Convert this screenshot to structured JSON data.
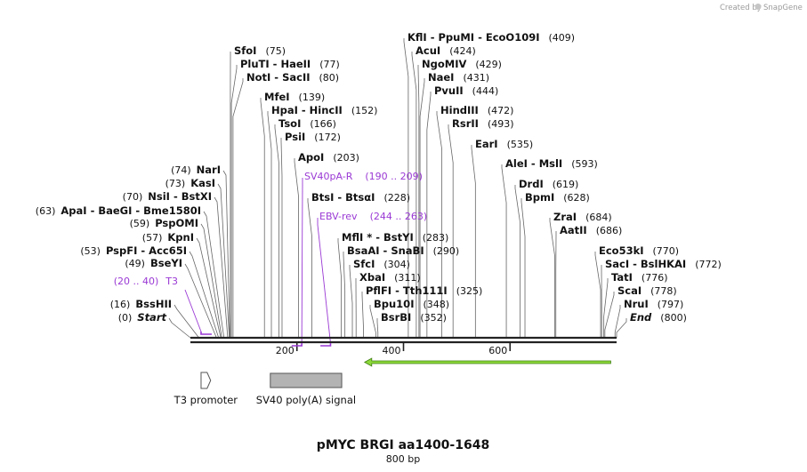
{
  "credit": {
    "text": "Created by",
    "brand": "SnapGene"
  },
  "title": "pMYC BRGI aa1400-1648",
  "subtitle": "800 bp",
  "sequence_length": 800,
  "ruler_ticks": [
    "200",
    "400",
    "600"
  ],
  "sites": [
    {
      "label": "Start",
      "pos": "(0)",
      "bp": 0,
      "side": "left",
      "italic": true
    },
    {
      "label": "BssHII",
      "pos": "(16)",
      "bp": 16,
      "side": "left"
    },
    {
      "label": "BseYI",
      "pos": "(49)",
      "bp": 49,
      "side": "left"
    },
    {
      "label": "PspFI  -  Acc65I",
      "pos": "(53)",
      "bp": 53,
      "side": "left"
    },
    {
      "label": "KpnI",
      "pos": "(57)",
      "bp": 57,
      "side": "left"
    },
    {
      "label": "PspOMI",
      "pos": "(59)",
      "bp": 59,
      "side": "left"
    },
    {
      "label": "ApaI  -  BaeGI  -  Bme1580I",
      "pos": "(63)",
      "bp": 63,
      "side": "left"
    },
    {
      "label": "NsiI  -  BstXI",
      "pos": "(70)",
      "bp": 70,
      "side": "left"
    },
    {
      "label": "KasI",
      "pos": "(73)",
      "bp": 73,
      "side": "left"
    },
    {
      "label": "NarI",
      "pos": "(74)",
      "bp": 74,
      "side": "left"
    },
    {
      "label": "SfoI",
      "pos": "(75)",
      "bp": 75,
      "side": "right"
    },
    {
      "label": "PluTI  -  HaeII",
      "pos": "(77)",
      "bp": 77,
      "side": "right"
    },
    {
      "label": "NotI  -  SacII",
      "pos": "(80)",
      "bp": 80,
      "side": "right"
    },
    {
      "label": "MfeI",
      "pos": "(139)",
      "bp": 139,
      "side": "right"
    },
    {
      "label": "HpaI  -  HincII",
      "pos": "(152)",
      "bp": 152,
      "side": "right"
    },
    {
      "label": "TsoI",
      "pos": "(166)",
      "bp": 166,
      "side": "right"
    },
    {
      "label": "PsiI",
      "pos": "(172)",
      "bp": 172,
      "side": "right"
    },
    {
      "label": "ApoI",
      "pos": "(203)",
      "bp": 203,
      "side": "right"
    },
    {
      "label": "BtsI  -  BtsαI",
      "pos": "(228)",
      "bp": 228,
      "side": "right"
    },
    {
      "label": "MflI *  -  BstYI",
      "pos": "(283)",
      "bp": 283,
      "side": "right"
    },
    {
      "label": "BsaAI  -  SnaBI",
      "pos": "(290)",
      "bp": 290,
      "side": "right"
    },
    {
      "label": "SfcI",
      "pos": "(304)",
      "bp": 304,
      "side": "right"
    },
    {
      "label": "XbaI",
      "pos": "(311)",
      "bp": 311,
      "side": "right"
    },
    {
      "label": "PflFI  -  Tth111I",
      "pos": "(325)",
      "bp": 325,
      "side": "right"
    },
    {
      "label": "Bpu10I",
      "pos": "(348)",
      "bp": 348,
      "side": "right"
    },
    {
      "label": "BsrBI",
      "pos": "(352)",
      "bp": 352,
      "side": "right"
    },
    {
      "label": "KflI  -  PpuMI  -  EcoO109I",
      "pos": "(409)",
      "bp": 409,
      "side": "right"
    },
    {
      "label": "AcuI",
      "pos": "(424)",
      "bp": 424,
      "side": "right"
    },
    {
      "label": "NgoMIV",
      "pos": "(429)",
      "bp": 429,
      "side": "right"
    },
    {
      "label": "NaeI",
      "pos": "(431)",
      "bp": 431,
      "side": "right"
    },
    {
      "label": "PvuII",
      "pos": "(444)",
      "bp": 444,
      "side": "right"
    },
    {
      "label": "HindIII",
      "pos": "(472)",
      "bp": 472,
      "side": "right"
    },
    {
      "label": "RsrII",
      "pos": "(493)",
      "bp": 493,
      "side": "right"
    },
    {
      "label": "EarI",
      "pos": "(535)",
      "bp": 535,
      "side": "right"
    },
    {
      "label": "AleI  -  MslI",
      "pos": "(593)",
      "bp": 593,
      "side": "right"
    },
    {
      "label": "DrdI",
      "pos": "(619)",
      "bp": 619,
      "side": "right"
    },
    {
      "label": "BpmI",
      "pos": "(628)",
      "bp": 628,
      "side": "right"
    },
    {
      "label": "ZraI",
      "pos": "(684)",
      "bp": 684,
      "side": "right"
    },
    {
      "label": "AatII",
      "pos": "(686)",
      "bp": 686,
      "side": "right"
    },
    {
      "label": "Eco53kI",
      "pos": "(770)",
      "bp": 770,
      "side": "right"
    },
    {
      "label": "SacI  -  BslHKAI",
      "pos": "(772)",
      "bp": 772,
      "side": "right"
    },
    {
      "label": "TatI",
      "pos": "(776)",
      "bp": 776,
      "side": "right"
    },
    {
      "label": "ScaI",
      "pos": "(778)",
      "bp": 778,
      "side": "right"
    },
    {
      "label": "NruI",
      "pos": "(797)",
      "bp": 797,
      "side": "right"
    },
    {
      "label": "End",
      "pos": "(800)",
      "bp": 800,
      "side": "right",
      "italic": true
    }
  ],
  "primers": [
    {
      "name": "T3",
      "range": "(20 .. 40)",
      "start": 20,
      "end": 40,
      "side": "left",
      "direction": "forward"
    },
    {
      "name": "SV40pA-R",
      "range": "(190 .. 209)",
      "start": 190,
      "end": 209,
      "side": "right",
      "direction": "reverse"
    },
    {
      "name": "EBV-rev",
      "range": "(244 .. 263)",
      "start": 244,
      "end": 263,
      "side": "right",
      "direction": "reverse"
    }
  ],
  "features": [
    {
      "name": "T3 promoter",
      "start": 20,
      "end": 38,
      "shape": "arrow",
      "color": "#ffffff"
    },
    {
      "name": "SV40 poly(A) signal",
      "start": 150,
      "end": 284,
      "shape": "box",
      "color": "#b3b3b3"
    },
    {
      "name": "",
      "start": 327,
      "end": 789,
      "shape": "reverse-arrow",
      "color": "#8dd93a"
    }
  ],
  "colors": {
    "primer": "#9a39d4",
    "backbone": "#222222",
    "orf": "#8dd93a",
    "polyA": "#b3b3b3"
  }
}
